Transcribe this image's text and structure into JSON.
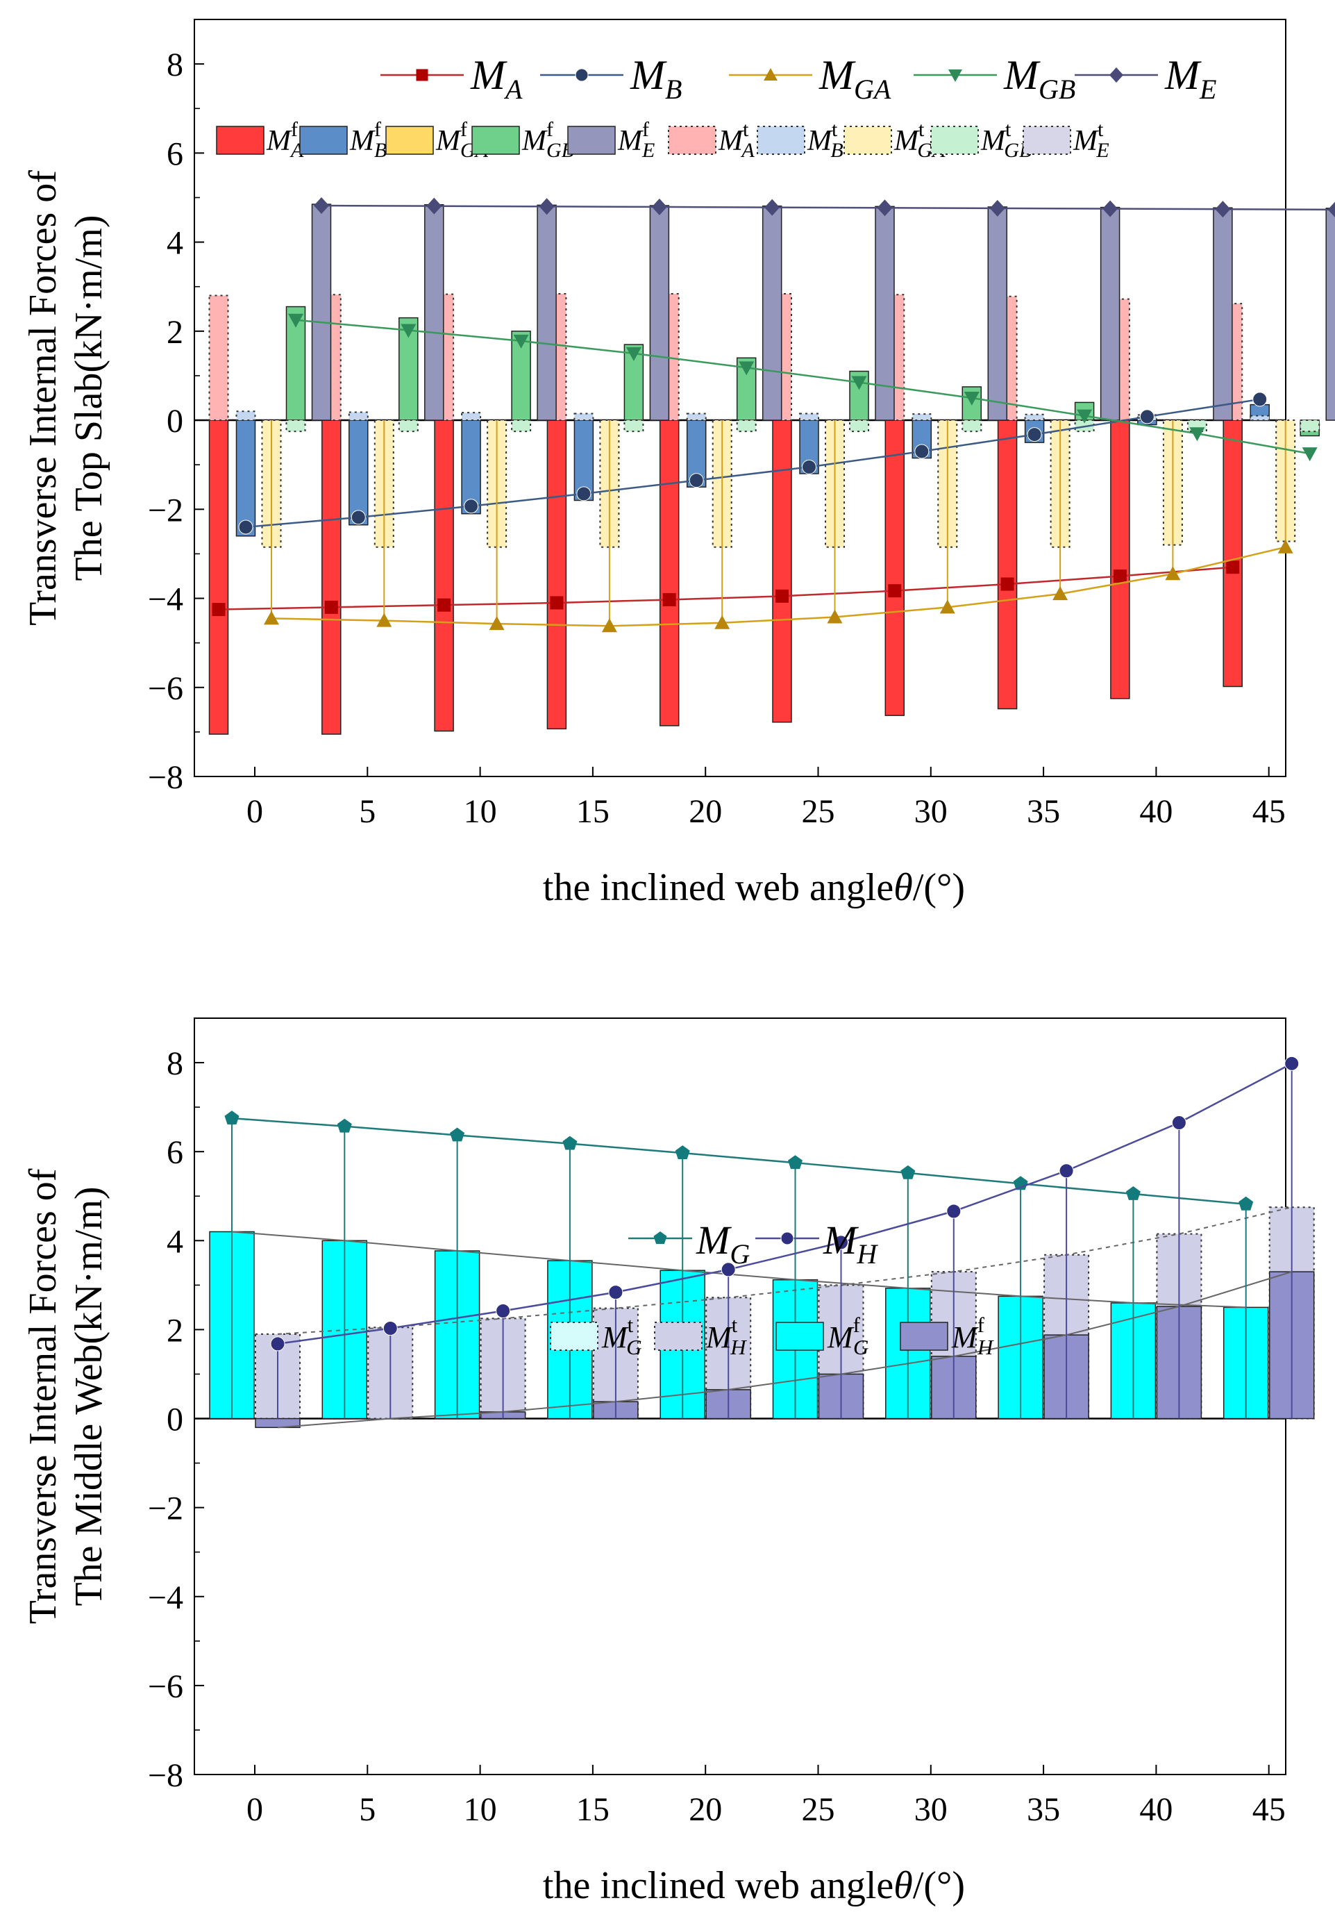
{
  "chart_data": [
    {
      "type": "bar",
      "id": "top",
      "ylabel": [
        "Transverse Internal Forces of",
        "The Top Slab(kN·m/m)"
      ],
      "xlabel": "the inclined web angleθ/(°)",
      "categories": [
        0,
        5,
        10,
        15,
        20,
        25,
        30,
        35,
        40,
        45
      ],
      "ylim": [
        -8,
        9
      ],
      "yticks": [
        -8,
        -6,
        -4,
        -2,
        0,
        2,
        4,
        6,
        8
      ],
      "bar_series": [
        {
          "name": "MA f",
          "main": "M",
          "sub": "A",
          "sup": "f",
          "style": "solid",
          "fill": "#ff3b3b",
          "values": [
            -7.05,
            -7.05,
            -6.98,
            -6.93,
            -6.86,
            -6.78,
            -6.63,
            -6.48,
            -6.25,
            -5.98
          ]
        },
        {
          "name": "MA t",
          "main": "M",
          "sub": "A",
          "sup": "t",
          "style": "dotted",
          "fill": "#ffb3b3",
          "values": [
            2.8,
            2.82,
            2.83,
            2.84,
            2.84,
            2.84,
            2.82,
            2.78,
            2.72,
            2.62
          ]
        },
        {
          "name": "MB f",
          "main": "M",
          "sub": "B",
          "sup": "f",
          "style": "solid",
          "fill": "#5b8ec9",
          "values": [
            -2.6,
            -2.35,
            -2.1,
            -1.8,
            -1.5,
            -1.2,
            -0.85,
            -0.5,
            -0.1,
            0.35
          ]
        },
        {
          "name": "MB t",
          "main": "M",
          "sub": "B",
          "sup": "t",
          "style": "dotted",
          "fill": "#c3d8f0",
          "values": [
            0.2,
            0.18,
            0.17,
            0.15,
            0.15,
            0.15,
            0.14,
            0.13,
            0.12,
            0.1
          ]
        },
        {
          "name": "MGA f",
          "main": "M",
          "sub": "GA",
          "sup": "f",
          "style": "solid",
          "fill": "#ffd966",
          "values": [
            0,
            0,
            0,
            0,
            0,
            0,
            0,
            0,
            0,
            0
          ]
        },
        {
          "name": "MGA t",
          "main": "M",
          "sub": "GA",
          "sup": "t",
          "style": "dotted",
          "fill": "#fff0b8",
          "values": [
            -2.85,
            -2.85,
            -2.85,
            -2.85,
            -2.85,
            -2.85,
            -2.85,
            -2.85,
            -2.8,
            -2.72
          ]
        },
        {
          "name": "MGB f",
          "main": "M",
          "sub": "GB",
          "sup": "f",
          "style": "solid",
          "fill": "#6fd08c",
          "values": [
            2.55,
            2.3,
            2.0,
            1.7,
            1.4,
            1.1,
            0.75,
            0.4,
            0.0,
            -0.35
          ]
        },
        {
          "name": "MGB t",
          "main": "M",
          "sub": "GB",
          "sup": "t",
          "style": "dotted",
          "fill": "#c6f0d2",
          "values": [
            -0.25,
            -0.25,
            -0.25,
            -0.25,
            -0.25,
            -0.25,
            -0.25,
            -0.25,
            -0.25,
            -0.25
          ]
        },
        {
          "name": "ME f",
          "main": "M",
          "sub": "E",
          "sup": "f",
          "style": "solid",
          "fill": "#9496bb",
          "values": [
            4.85,
            4.84,
            4.83,
            4.82,
            4.81,
            4.8,
            4.79,
            4.78,
            4.77,
            4.76
          ]
        },
        {
          "name": "ME t",
          "main": "M",
          "sub": "E",
          "sup": "t",
          "style": "dotted",
          "fill": "#d6d6e8",
          "values": [
            0,
            0,
            0,
            0,
            0,
            0,
            0,
            0,
            0,
            0
          ]
        }
      ],
      "line_series": [
        {
          "name": "MA",
          "main": "M",
          "sub": "A",
          "color": "#c0282c",
          "marker": "square",
          "markerColor": "#b00000",
          "slot": 0,
          "values": [
            -4.25,
            -4.2,
            -4.15,
            -4.1,
            -4.03,
            -3.95,
            -3.83,
            -3.68,
            -3.5,
            -3.3
          ]
        },
        {
          "name": "MB",
          "main": "M",
          "sub": "B",
          "color": "#3b5a86",
          "marker": "circle",
          "markerColor": "#2b3f66",
          "slot": 1,
          "values": [
            -2.4,
            -2.18,
            -1.93,
            -1.65,
            -1.35,
            -1.05,
            -0.7,
            -0.32,
            0.08,
            0.47
          ]
        },
        {
          "name": "MGA",
          "main": "M",
          "sub": "GA",
          "color": "#d4a017",
          "marker": "triangle",
          "markerColor": "#b8860b",
          "slot": 2,
          "values": [
            -4.45,
            -4.5,
            -4.57,
            -4.62,
            -4.55,
            -4.42,
            -4.2,
            -3.9,
            -3.45,
            -2.85
          ]
        },
        {
          "name": "MGB",
          "main": "M",
          "sub": "GB",
          "color": "#3a9a5b",
          "marker": "triangleDown",
          "markerColor": "#2e8b57",
          "slot": 3,
          "values": [
            2.25,
            2.02,
            1.78,
            1.5,
            1.18,
            0.85,
            0.5,
            0.1,
            -0.3,
            -0.75
          ]
        },
        {
          "name": "ME",
          "main": "M",
          "sub": "E",
          "color": "#4d4f7a",
          "marker": "diamond",
          "markerColor": "#4a4a78",
          "slot": 4,
          "values": [
            4.82,
            4.81,
            4.8,
            4.79,
            4.78,
            4.77,
            4.76,
            4.75,
            4.74,
            4.73
          ]
        }
      ]
    },
    {
      "type": "bar",
      "id": "bottom",
      "ylabel": [
        "Transverse Internal Forces of",
        "The Middle Web(kN·m/m)"
      ],
      "xlabel": "the inclined web angleθ/(°)",
      "categories": [
        0,
        5,
        10,
        15,
        20,
        25,
        30,
        35,
        40,
        45
      ],
      "ylim": [
        -8,
        9
      ],
      "yticks": [
        -8,
        -6,
        -4,
        -2,
        0,
        2,
        4,
        6,
        8
      ],
      "bar_series": [
        {
          "name": "MG f",
          "main": "M",
          "sub": "G",
          "sup": "f",
          "style": "solid",
          "fill": "#00ffff",
          "values": [
            4.2,
            4.0,
            3.77,
            3.55,
            3.33,
            3.12,
            2.93,
            2.75,
            2.6,
            2.5
          ]
        },
        {
          "name": "MG t",
          "main": "M",
          "sub": "G",
          "sup": "t",
          "style": "dotted",
          "fill": "#d6fbfb",
          "values": [
            0,
            0,
            0,
            0,
            0,
            0,
            0,
            0,
            0,
            0
          ]
        },
        {
          "name": "MH t",
          "main": "M",
          "sub": "H",
          "sup": "t",
          "style": "dotted",
          "fill": "#cfcfe8",
          "values": [
            1.9,
            2.05,
            2.25,
            2.48,
            2.72,
            3.0,
            3.3,
            3.68,
            4.15,
            4.75
          ]
        },
        {
          "name": "MH f",
          "main": "M",
          "sub": "H",
          "sup": "f",
          "style": "solid",
          "fill": "#9090cc",
          "values": [
            -0.2,
            0.0,
            0.15,
            0.38,
            0.65,
            1.0,
            1.4,
            1.88,
            2.52,
            3.3
          ]
        }
      ],
      "line_series": [
        {
          "name": "MG",
          "main": "M",
          "sub": "G",
          "color": "#1f7a7a",
          "marker": "pentagon",
          "markerColor": "#137b7b",
          "slot": 0,
          "values": [
            6.75,
            6.57,
            6.37,
            6.18,
            5.97,
            5.75,
            5.52,
            5.28,
            5.05,
            4.82
          ]
        },
        {
          "name": "MH",
          "main": "M",
          "sub": "H",
          "color": "#4b4b9c",
          "marker": "circle",
          "markerColor": "#303080",
          "slot": 2,
          "values": [
            1.68,
            2.03,
            2.42,
            2.84,
            3.35,
            3.96,
            4.66,
            5.57,
            6.65,
            7.98
          ]
        }
      ]
    }
  ]
}
